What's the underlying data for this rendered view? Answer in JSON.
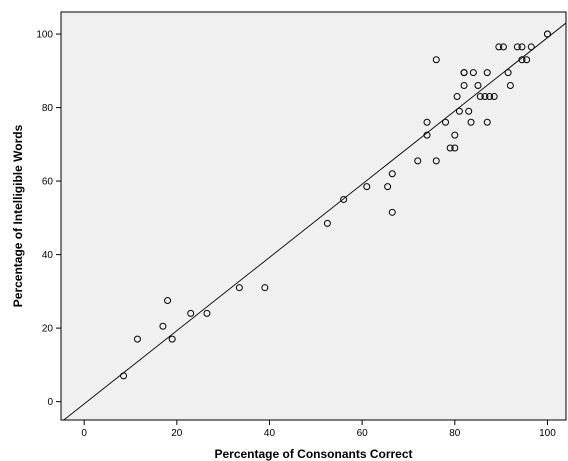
{
  "chart_data": {
    "type": "scatter",
    "title": "",
    "xlabel": "Percentage of Consonants Correct",
    "ylabel": "Percentage of Intelligible Words",
    "xlim": [
      -5,
      104
    ],
    "ylim": [
      -5,
      106
    ],
    "xticks": [
      0,
      20,
      40,
      60,
      80,
      100
    ],
    "yticks": [
      0,
      20,
      40,
      60,
      80,
      100
    ],
    "grid": false,
    "legend": "none",
    "colors": {
      "background": "#f0f0f0",
      "marker": "#000000",
      "line": "#000000",
      "axis": "#000000"
    },
    "fit_line": {
      "from": [
        -5,
        -5.6
      ],
      "to": [
        104,
        103
      ]
    },
    "points": [
      [
        8.5,
        7
      ],
      [
        11.5,
        17
      ],
      [
        17,
        20.5
      ],
      [
        18,
        27.5
      ],
      [
        19,
        17
      ],
      [
        23,
        24
      ],
      [
        26.5,
        24
      ],
      [
        33.5,
        31
      ],
      [
        39,
        31
      ],
      [
        52.5,
        48.5
      ],
      [
        56,
        55
      ],
      [
        61,
        58.5
      ],
      [
        65.5,
        58.5
      ],
      [
        66.5,
        62
      ],
      [
        66.5,
        51.5
      ],
      [
        72,
        65.5
      ],
      [
        74,
        72.5
      ],
      [
        74,
        76
      ],
      [
        76,
        65.5
      ],
      [
        76,
        93
      ],
      [
        78,
        76
      ],
      [
        79,
        69
      ],
      [
        80,
        69
      ],
      [
        80,
        72.5
      ],
      [
        80.5,
        83
      ],
      [
        81,
        79
      ],
      [
        82,
        86
      ],
      [
        82,
        89.5
      ],
      [
        82,
        89.5
      ],
      [
        83,
        79
      ],
      [
        83.5,
        76
      ],
      [
        84,
        89.5
      ],
      [
        85,
        86
      ],
      [
        85.5,
        83
      ],
      [
        86.5,
        83
      ],
      [
        87,
        89.5
      ],
      [
        87,
        76
      ],
      [
        87.5,
        83
      ],
      [
        88.5,
        83
      ],
      [
        89.5,
        96.5
      ],
      [
        90.5,
        96.5
      ],
      [
        91.5,
        89.5
      ],
      [
        92,
        86
      ],
      [
        93.5,
        96.5
      ],
      [
        94.5,
        96.5
      ],
      [
        94.5,
        93
      ],
      [
        95.5,
        93
      ],
      [
        96.5,
        96.5
      ],
      [
        100,
        100
      ],
      [
        100,
        100
      ]
    ]
  }
}
